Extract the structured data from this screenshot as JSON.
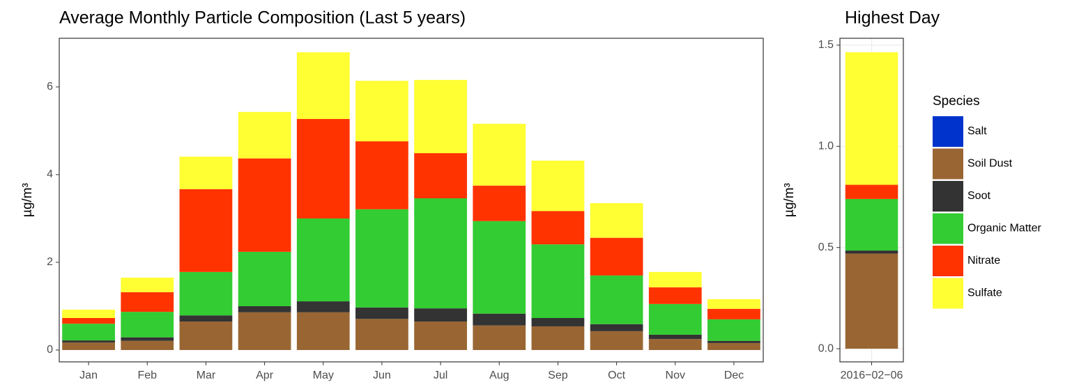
{
  "chart_data": [
    {
      "type": "stacked_bar",
      "title": "Average Monthly Particle Composition (Last 5 years)",
      "y_label": "µg/m³",
      "categories": [
        "Jan",
        "Feb",
        "Mar",
        "Apr",
        "May",
        "Jun",
        "Jul",
        "Aug",
        "Sep",
        "Oct",
        "Nov",
        "Dec"
      ],
      "series": [
        {
          "name": "Salt",
          "color": "#0033cc",
          "values": [
            0,
            0,
            0,
            0,
            0,
            0,
            0,
            0,
            0,
            0,
            0,
            0
          ]
        },
        {
          "name": "Soil Dust",
          "color": "#996633",
          "values": [
            0.17,
            0.21,
            0.65,
            0.86,
            0.86,
            0.71,
            0.65,
            0.56,
            0.54,
            0.43,
            0.25,
            0.16
          ]
        },
        {
          "name": "Soot",
          "color": "#333333",
          "values": [
            0.05,
            0.08,
            0.14,
            0.14,
            0.25,
            0.26,
            0.3,
            0.27,
            0.19,
            0.16,
            0.1,
            0.05
          ]
        },
        {
          "name": "Organic Matter",
          "color": "#33cc33",
          "values": [
            0.38,
            0.58,
            0.99,
            1.24,
            1.89,
            2.24,
            2.51,
            2.11,
            1.68,
            1.11,
            0.7,
            0.49
          ]
        },
        {
          "name": "Nitrate",
          "color": "#ff3300",
          "values": [
            0.13,
            0.45,
            1.89,
            2.13,
            2.27,
            1.55,
            1.03,
            0.81,
            0.76,
            0.86,
            0.38,
            0.24
          ]
        },
        {
          "name": "Sulfate",
          "color": "#ffff33",
          "values": [
            0.19,
            0.33,
            0.74,
            1.06,
            1.52,
            1.38,
            1.67,
            1.41,
            1.15,
            0.79,
            0.35,
            0.22
          ]
        }
      ],
      "ylim": [
        -0.27,
        7.11
      ],
      "yticks": [
        0,
        2,
        4,
        6
      ],
      "grid": false
    },
    {
      "type": "stacked_bar",
      "title": "Highest Day",
      "y_label": "µg/m³",
      "legend_title": "Species",
      "categories": [
        "2016−02−06"
      ],
      "series": [
        {
          "name": "Salt",
          "color": "#0033cc",
          "values": [
            0
          ]
        },
        {
          "name": "Soil Dust",
          "color": "#996633",
          "values": [
            0.47
          ]
        },
        {
          "name": "Soot",
          "color": "#333333",
          "values": [
            0.015
          ]
        },
        {
          "name": "Organic Matter",
          "color": "#33cc33",
          "values": [
            0.255
          ]
        },
        {
          "name": "Nitrate",
          "color": "#ff3300",
          "values": [
            0.07
          ]
        },
        {
          "name": "Sulfate",
          "color": "#ffff33",
          "values": [
            0.655
          ]
        }
      ],
      "ylim": [
        -0.065,
        1.534
      ],
      "yticks": [
        {
          "value": 0,
          "label": "0.0"
        },
        0.5,
        {
          "value": 1,
          "label": "1.0"
        },
        1.5
      ],
      "grid": true
    }
  ]
}
